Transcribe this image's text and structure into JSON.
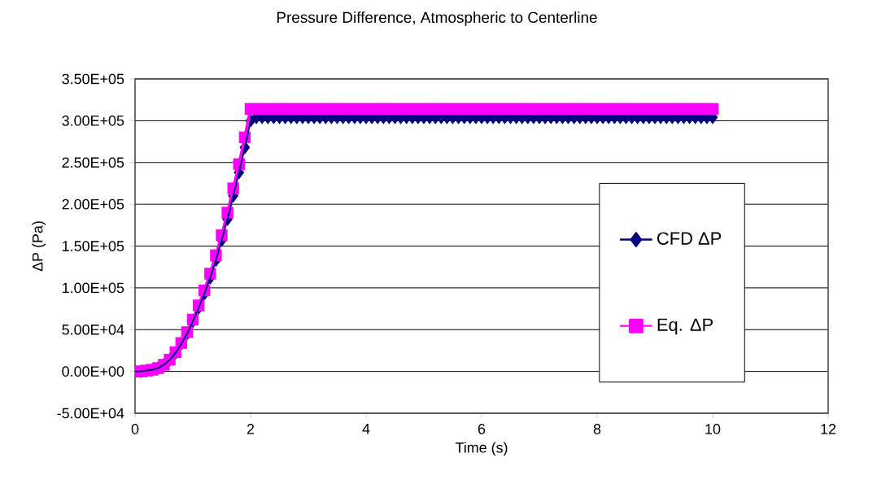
{
  "chart_data": {
    "type": "line",
    "title": "Pressure Difference, Atmospheric to Centerline",
    "xlabel": "Time (s)",
    "ylabel": "ΔP (Pa)",
    "xlim": [
      0,
      12
    ],
    "xticks": [
      0,
      2,
      4,
      6,
      8,
      10,
      12
    ],
    "ylim": [
      -50000,
      350000
    ],
    "yticks": [
      {
        "value": -50000,
        "label": "-5.00E+04"
      },
      {
        "value": 0,
        "label": "0.00E+00"
      },
      {
        "value": 50000,
        "label": "5.00E+04"
      },
      {
        "value": 100000,
        "label": "1.00E+05"
      },
      {
        "value": 150000,
        "label": "1.50E+05"
      },
      {
        "value": 200000,
        "label": "2.00E+05"
      },
      {
        "value": 250000,
        "label": "2.50E+05"
      },
      {
        "value": 300000,
        "label": "3.00E+05"
      },
      {
        "value": 350000,
        "label": "3.50E+05"
      }
    ],
    "grid": "y",
    "legend": "bottom right",
    "line_style": "solid",
    "x": [
      0,
      0.1,
      0.2,
      0.3,
      0.4,
      0.5,
      0.6,
      0.7,
      0.8,
      0.9,
      1,
      1.1,
      1.2,
      1.3,
      1.4,
      1.5,
      1.6,
      1.7,
      1.8,
      1.9,
      2,
      2.1,
      2.2,
      2.3,
      2.4,
      2.5,
      2.6,
      2.7,
      2.8,
      2.9,
      3,
      3.1,
      3.2,
      3.3,
      3.4,
      3.5,
      3.6,
      3.7,
      3.8,
      3.9,
      4,
      4.1,
      4.2,
      4.3,
      4.4,
      4.5,
      4.6,
      4.7,
      4.8,
      4.9,
      5,
      5.1,
      5.2,
      5.3,
      5.4,
      5.5,
      5.6,
      5.7,
      5.8,
      5.9,
      6,
      6.1,
      6.2,
      6.3,
      6.4,
      6.5,
      6.6,
      6.7,
      6.8,
      6.9,
      7,
      7.1,
      7.2,
      7.3,
      7.4,
      7.5,
      7.6,
      7.7,
      7.8,
      7.9,
      8,
      8.1,
      8.2,
      8.3,
      8.4,
      8.5,
      8.6,
      8.7,
      8.8,
      8.9,
      9,
      9.1,
      9.2,
      9.3,
      9.4,
      9.5,
      9.6,
      9.7,
      9.8,
      9.9,
      10
    ],
    "series": [
      {
        "name": "CFD ΔP",
        "color": "#000080",
        "marker": "diamond",
        "values": [
          0,
          0,
          1000,
          2000,
          4000,
          8000,
          14000,
          22000,
          33000,
          45000,
          60000,
          76000,
          93000,
          112000,
          133000,
          157000,
          182000,
          210000,
          238000,
          268000,
          300000,
          304000,
          304000,
          304000,
          304000,
          304000,
          304000,
          304000,
          304000,
          304000,
          304000,
          304000,
          304000,
          304000,
          304000,
          304000,
          304000,
          304000,
          304000,
          304000,
          304000,
          304000,
          304000,
          304000,
          304000,
          304000,
          304000,
          304000,
          304000,
          304000,
          304000,
          304000,
          304000,
          304000,
          304000,
          304000,
          304000,
          304000,
          304000,
          304000,
          304000,
          304000,
          304000,
          304000,
          304000,
          304000,
          304000,
          304000,
          304000,
          304000,
          304000,
          304000,
          304000,
          304000,
          304000,
          304000,
          304000,
          304000,
          304000,
          304000,
          304000,
          304000,
          304000,
          304000,
          304000,
          304000,
          304000,
          304000,
          304000,
          304000,
          304000,
          304000,
          304000,
          304000,
          304000,
          304000,
          304000,
          304000,
          304000,
          304000,
          304000
        ]
      },
      {
        "name": "Eq. ΔP",
        "color": "#ff00ff",
        "marker": "square",
        "values": [
          0,
          0,
          1000,
          2000,
          4000,
          8000,
          14000,
          23000,
          34000,
          47000,
          62000,
          79000,
          97000,
          117000,
          139000,
          163000,
          190000,
          219000,
          248000,
          280000,
          314000,
          314000,
          314000,
          314000,
          314000,
          314000,
          314000,
          314000,
          314000,
          314000,
          314000,
          314000,
          314000,
          314000,
          314000,
          314000,
          314000,
          314000,
          314000,
          314000,
          314000,
          314000,
          314000,
          314000,
          314000,
          314000,
          314000,
          314000,
          314000,
          314000,
          314000,
          314000,
          314000,
          314000,
          314000,
          314000,
          314000,
          314000,
          314000,
          314000,
          314000,
          314000,
          314000,
          314000,
          314000,
          314000,
          314000,
          314000,
          314000,
          314000,
          314000,
          314000,
          314000,
          314000,
          314000,
          314000,
          314000,
          314000,
          314000,
          314000,
          314000,
          314000,
          314000,
          314000,
          314000,
          314000,
          314000,
          314000,
          314000,
          314000,
          314000,
          314000,
          314000,
          314000,
          314000,
          314000,
          314000,
          314000,
          314000,
          314000,
          314000
        ]
      }
    ]
  }
}
